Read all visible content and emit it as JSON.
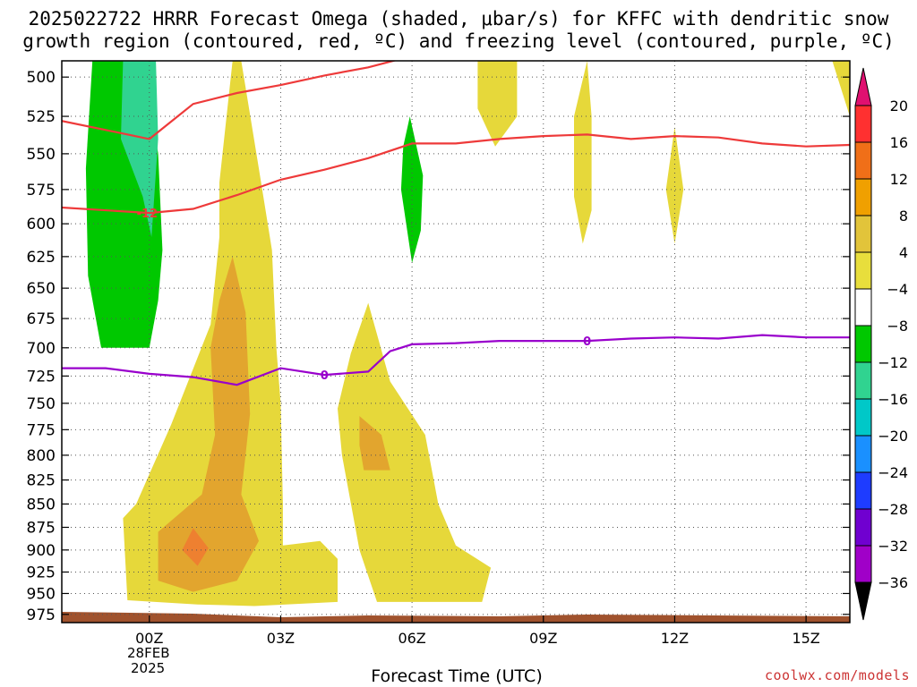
{
  "title_line1": "2025022722 HRRR Forecast Omega (shaded, μbar/s) for KFFC with dendritic snow",
  "title_line2": "growth region (contoured, red, ºC) and freezing level (contoured, purple, ºC)",
  "xlabel": "Forecast Time (UTC)",
  "date_label_1": "28FEB",
  "date_label_2": "2025",
  "credit": "coolwx.com/models",
  "chart_data": {
    "type": "area",
    "x_tick_labels": [
      "00Z",
      "03Z",
      "06Z",
      "09Z",
      "12Z",
      "15Z"
    ],
    "x_tick_hours": [
      0,
      3,
      6,
      9,
      12,
      15
    ],
    "xlim_hours": [
      -2,
      16
    ],
    "y_tick_labels": [
      500,
      525,
      550,
      575,
      600,
      625,
      650,
      675,
      700,
      725,
      750,
      775,
      800,
      825,
      850,
      875,
      900,
      925,
      950,
      975
    ],
    "ylim_hpa": [
      985,
      490
    ],
    "colorbar_labels": [
      20,
      16,
      12,
      8,
      4,
      -4,
      -8,
      -12,
      -16,
      -20,
      -24,
      -28,
      -32,
      -36
    ],
    "colorbar_colors": [
      "#ff3030",
      "#f06f18",
      "#f0a000",
      "#e2c43a",
      "#e8de3c",
      "#ffffff",
      "#00c800",
      "#30d390",
      "#00c8c8",
      "#1a90ff",
      "#1e3cff",
      "#7000d0",
      "#a000c8",
      "#a0a0a0"
    ],
    "colorbar_top_color": "#e01070",
    "colorbar_bottom_color": "#000000",
    "dgz_contour_labels": [
      "-12"
    ],
    "freezing_contour_labels": [
      "0",
      "0"
    ],
    "dgz_color": "#ee3a3a",
    "freezing_color": "#9900cc",
    "terrain_color": "#a0522d",
    "freezing_level": {
      "x": [
        -2,
        -1,
        0,
        1,
        2,
        3,
        4,
        5,
        5.5,
        6,
        7,
        8,
        9,
        10,
        11,
        12,
        13,
        14,
        15,
        16
      ],
      "y": [
        718,
        718,
        723,
        726,
        733,
        718,
        724,
        721,
        703,
        697,
        696,
        694,
        694,
        694,
        692,
        691,
        692,
        689,
        691,
        691
      ]
    },
    "dgz_upper": {
      "x": [
        -2,
        0,
        1,
        2,
        3,
        4,
        5,
        6,
        7
      ],
      "y": [
        528,
        540,
        517,
        510,
        505,
        499,
        494,
        487,
        485
      ]
    },
    "dgz_middle": {
      "x": [
        -2,
        0,
        1,
        2,
        3,
        4,
        5,
        6,
        7,
        8,
        9,
        10,
        11,
        12,
        13,
        14,
        15,
        16
      ],
      "y": [
        588,
        592,
        589,
        579,
        568,
        561,
        553,
        543,
        543,
        540,
        538,
        537,
        540,
        538,
        539,
        543,
        545,
        544
      ]
    },
    "shaded_regions": [
      {
        "name": "omega-negative-green-left",
        "value": -8,
        "points": [
          [
            -1.3,
            490
          ],
          [
            -0.1,
            490
          ],
          [
            0.2,
            550
          ],
          [
            0.3,
            620
          ],
          [
            0.2,
            660
          ],
          [
            0,
            700
          ],
          [
            -1.1,
            700
          ],
          [
            -1.4,
            640
          ],
          [
            -1.45,
            560
          ]
        ]
      },
      {
        "name": "omega-negative-teal-left",
        "value": -12,
        "points": [
          [
            -0.6,
            490
          ],
          [
            0.15,
            490
          ],
          [
            0.2,
            540
          ],
          [
            0.05,
            610
          ],
          [
            -0.15,
            580
          ],
          [
            -0.65,
            540
          ]
        ]
      },
      {
        "name": "omega-negative-green-06z",
        "value": -8,
        "points": [
          [
            5.95,
            525
          ],
          [
            6.25,
            565
          ],
          [
            6.2,
            605
          ],
          [
            6.0,
            630
          ],
          [
            5.75,
            575
          ],
          [
            5.8,
            545
          ]
        ]
      },
      {
        "name": "omega-positive-yellow-main",
        "value": 4,
        "points": [
          [
            1.6,
            570
          ],
          [
            1.9,
            490
          ],
          [
            2.1,
            490
          ],
          [
            2.5,
            560
          ],
          [
            2.8,
            620
          ],
          [
            2.9,
            700
          ],
          [
            3.0,
            750
          ],
          [
            3.05,
            850
          ],
          [
            3.05,
            895
          ],
          [
            3.9,
            890
          ],
          [
            4.3,
            910
          ],
          [
            4.3,
            960
          ],
          [
            2.4,
            965
          ],
          [
            1.1,
            963
          ],
          [
            -0.5,
            958
          ],
          [
            -0.6,
            865
          ],
          [
            -0.3,
            850
          ],
          [
            0.5,
            770
          ],
          [
            1.4,
            680
          ],
          [
            1.6,
            610
          ]
        ]
      },
      {
        "name": "omega-positive-yellow-05z",
        "value": 4,
        "points": [
          [
            5.0,
            662
          ],
          [
            5.5,
            730
          ],
          [
            6.3,
            780
          ],
          [
            6.6,
            850
          ],
          [
            7.0,
            895
          ],
          [
            7.8,
            920
          ],
          [
            7.6,
            960
          ],
          [
            6.8,
            960
          ],
          [
            5.2,
            960
          ],
          [
            4.8,
            900
          ],
          [
            4.4,
            800
          ],
          [
            4.3,
            755
          ],
          [
            4.6,
            705
          ]
        ]
      },
      {
        "name": "omega-positive-yellow-08z",
        "value": 4,
        "points": [
          [
            7.5,
            490
          ],
          [
            8.4,
            490
          ],
          [
            8.4,
            525
          ],
          [
            7.9,
            545
          ],
          [
            7.5,
            520
          ]
        ]
      },
      {
        "name": "omega-positive-yellow-10z",
        "value": 4,
        "points": [
          [
            10.0,
            490
          ],
          [
            10.1,
            525
          ],
          [
            10.1,
            590
          ],
          [
            9.9,
            615
          ],
          [
            9.7,
            580
          ],
          [
            9.7,
            525
          ]
        ]
      },
      {
        "name": "omega-positive-yellow-12z",
        "value": 4,
        "points": [
          [
            12.0,
            532
          ],
          [
            12.2,
            575
          ],
          [
            12.0,
            615
          ],
          [
            11.8,
            575
          ]
        ]
      },
      {
        "name": "omega-positive-yellow-16z",
        "value": 4,
        "points": [
          [
            15.6,
            490
          ],
          [
            16,
            490
          ],
          [
            16,
            525
          ]
        ]
      },
      {
        "name": "omega-positive-orange-main",
        "value": 8,
        "points": [
          [
            1.9,
            625
          ],
          [
            2.2,
            670
          ],
          [
            2.3,
            760
          ],
          [
            2.1,
            840
          ],
          [
            2.5,
            890
          ],
          [
            2.0,
            935
          ],
          [
            1.0,
            948
          ],
          [
            0.2,
            935
          ],
          [
            0.2,
            880
          ],
          [
            1.2,
            840
          ],
          [
            1.5,
            780
          ],
          [
            1.4,
            700
          ],
          [
            1.6,
            660
          ]
        ]
      },
      {
        "name": "omega-positive-orange-05z",
        "value": 8,
        "points": [
          [
            4.8,
            762
          ],
          [
            5.3,
            780
          ],
          [
            5.5,
            815
          ],
          [
            4.9,
            815
          ],
          [
            4.8,
            790
          ]
        ]
      },
      {
        "name": "omega-positive-darkorange-900",
        "value": 12,
        "points": [
          [
            1.0,
            876
          ],
          [
            1.35,
            898
          ],
          [
            1.1,
            918
          ],
          [
            0.75,
            900
          ]
        ]
      }
    ]
  }
}
